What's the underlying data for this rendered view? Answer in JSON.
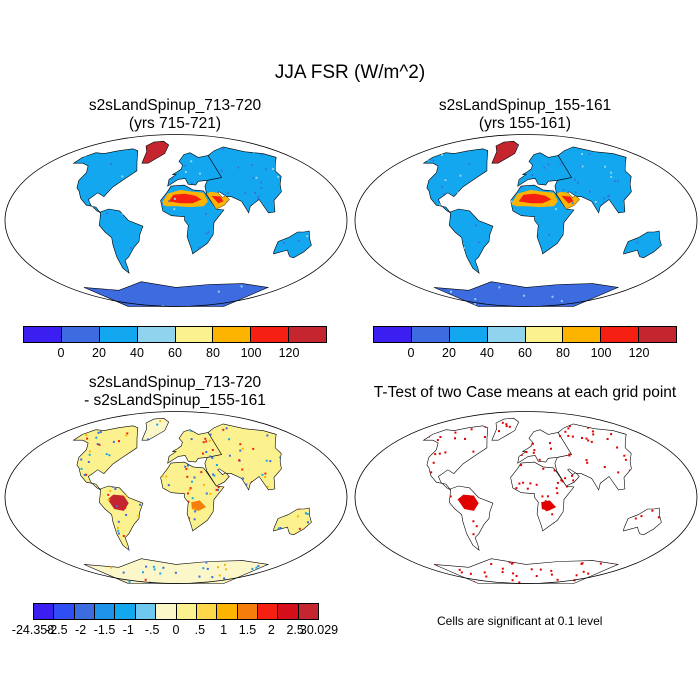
{
  "title": "JJA FSR (W/m^2)",
  "panels": [
    {
      "title_line1": "s2sLandSpinup_713-720",
      "title_line2": "(yrs 715-721)"
    },
    {
      "title_line1": "s2sLandSpinup_155-161",
      "title_line2": "(yrs 155-161)"
    },
    {
      "title_line1": "s2sLandSpinup_713-720",
      "title_line2": "- s2sLandSpinup_155-161"
    },
    {
      "title_line1": "T-Test of two Case means at each grid point",
      "title_line2": ""
    }
  ],
  "colorbar_abs": {
    "colors": [
      "#3a1ff0",
      "#3d6be0",
      "#12a7ef",
      "#8fd3ef",
      "#fbf28f",
      "#fdb400",
      "#f51f12",
      "#c4252e"
    ],
    "labels": [
      "0",
      "20",
      "40",
      "60",
      "80",
      "100",
      "120"
    ]
  },
  "colorbar_diff": {
    "colors": [
      "#3a1ff0",
      "#2f4ff2",
      "#3d6be0",
      "#1f93ea",
      "#12a7ef",
      "#6fc8f0",
      "#fbf7c8",
      "#fbf28f",
      "#fdd84a",
      "#fdb400",
      "#f57d0a",
      "#f51f12",
      "#d40f1a",
      "#c4252e"
    ],
    "labels": [
      "-24.358",
      "-2.5",
      "-2",
      "-1.5",
      "-1",
      "-.5",
      "0",
      ".5",
      "1",
      "1.5",
      "2",
      "2.5",
      "30.029"
    ]
  },
  "significance_note": "Cells are significant at 0.1 level",
  "map_colors": {
    "ocean": "#ffffff",
    "land_abs": "#12a7ef",
    "desert": "#f51f12",
    "desert_edge": "#fdb400",
    "ice": "#3d6be0",
    "greenland": "#c4252e",
    "diff_land": "#fbf28f",
    "diff_hot": "#c4252e",
    "diff_cold": "#3d6be0",
    "significant": "#e00000"
  }
}
